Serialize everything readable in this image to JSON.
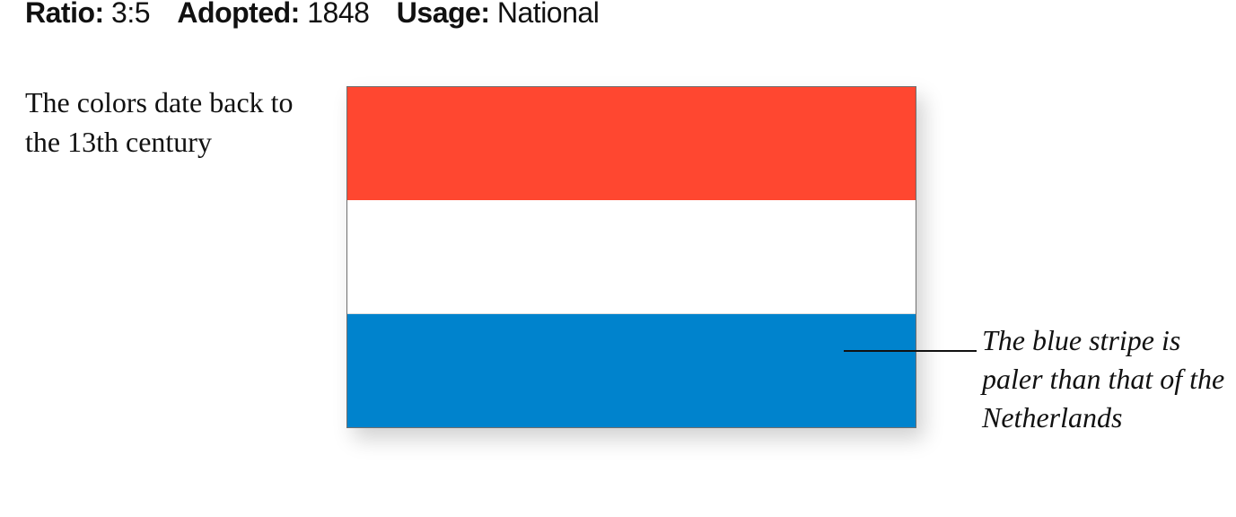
{
  "meta": {
    "ratio_label": "Ratio:",
    "ratio_value": "3:5",
    "adopted_label": "Adopted:",
    "adopted_value": "1848",
    "usage_label": "Usage:",
    "usage_value": "National"
  },
  "note_left": "The colors date back to the 13th century",
  "note_right": "The blue stripe is paler than that of the Netherlands",
  "flag": {
    "stripes": [
      {
        "name": "red",
        "color": "#ff4730"
      },
      {
        "name": "white",
        "color": "#ffffff"
      },
      {
        "name": "blue",
        "color": "#0083cd"
      }
    ]
  }
}
